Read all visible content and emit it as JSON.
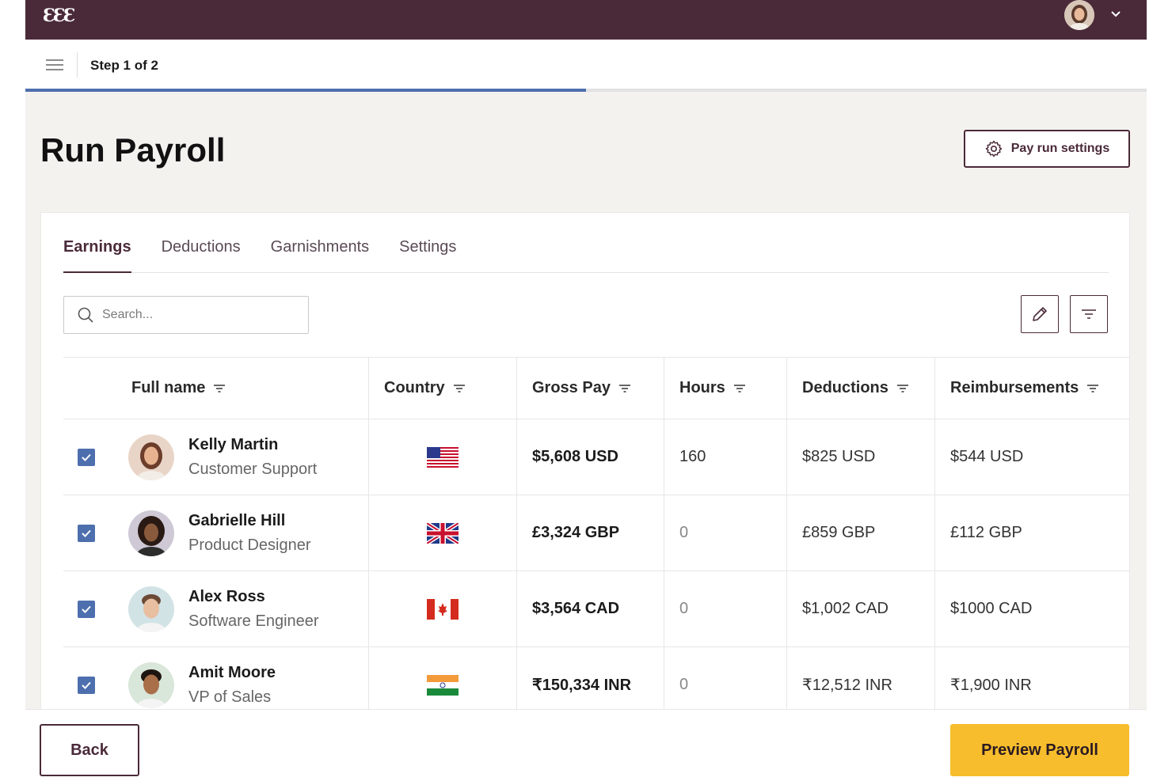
{
  "app": {
    "logo_text": "ƐƐƐ",
    "accent_color": "#4a2a39",
    "progress_color": "#4d6fae",
    "primary_button_color": "#f7bd2c"
  },
  "topbar": {
    "avatar_icon": "user-avatar",
    "menu_icon": "chevron-down-icon"
  },
  "subheader": {
    "menu_icon": "hamburger-icon",
    "step_text": "Step 1 of 2",
    "progress_fraction": 0.5
  },
  "header": {
    "title": "Run Payroll",
    "settings_button_label": "Pay run settings",
    "settings_icon": "gear-icon"
  },
  "tabs": [
    {
      "label": "Earnings",
      "active": true
    },
    {
      "label": "Deductions",
      "active": false
    },
    {
      "label": "Garnishments",
      "active": false
    },
    {
      "label": "Settings",
      "active": false
    }
  ],
  "search": {
    "placeholder": "Search...",
    "value": ""
  },
  "toolbar": {
    "edit_icon": "pencil-icon",
    "filter_icon": "filter-icon"
  },
  "table": {
    "columns": [
      "Full name",
      "Country",
      "Gross Pay",
      "Hours",
      "Deductions",
      "Reimbursements"
    ],
    "rows": [
      {
        "checked": true,
        "name": "Kelly Martin",
        "role": "Customer Support",
        "country_flag": "us-flag-icon",
        "gross_pay": "$5,608 USD",
        "hours": "160",
        "deductions": "$825 USD",
        "reimbursements": "$544 USD"
      },
      {
        "checked": true,
        "name": "Gabrielle Hill",
        "role": "Product Designer",
        "country_flag": "uk-flag-icon",
        "gross_pay": "£3,324 GBP",
        "hours": "0",
        "deductions": "£859 GBP",
        "reimbursements": "£112 GBP"
      },
      {
        "checked": true,
        "name": "Alex Ross",
        "role": "Software Engineer",
        "country_flag": "canada-flag-icon",
        "gross_pay": "$3,564 CAD",
        "hours": "0",
        "deductions": "$1,002 CAD",
        "reimbursements": "$1000 CAD"
      },
      {
        "checked": true,
        "name": "Amit Moore",
        "role": "VP of Sales",
        "country_flag": "india-flag-icon",
        "gross_pay": "₹150,334 INR",
        "hours": "0",
        "deductions": "₹12,512 INR",
        "reimbursements": "₹1,900 INR"
      }
    ]
  },
  "footer": {
    "back_label": "Back",
    "preview_label": "Preview Payroll"
  }
}
